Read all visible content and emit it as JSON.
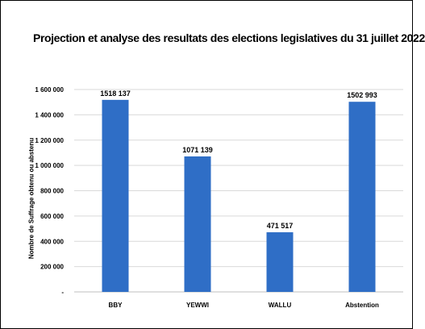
{
  "chart_data": {
    "type": "bar",
    "title": "Projection et analyse des resultats des elections legislatives du 31 juillet 2022",
    "xlabel": "",
    "ylabel": "Nombre de Suffrage obtenu ou abstenu",
    "categories": [
      "BBY",
      "YEWWI",
      "WALLU",
      "Abstention"
    ],
    "values": [
      1518137,
      1071139,
      471517,
      1502993
    ],
    "data_labels": [
      "1518 137",
      "1071 139",
      "471 517",
      "1502 993"
    ],
    "ylim": [
      0,
      1600000
    ],
    "yticks": [
      0,
      200000,
      400000,
      600000,
      800000,
      1000000,
      1200000,
      1400000,
      1600000
    ],
    "ytick_labels": [
      "-",
      "200 000",
      "400 000",
      "600 000",
      "800 000",
      "1 000 000",
      "1 200 000",
      "1 400 000",
      "1 600 000"
    ],
    "grid": true,
    "legend": "none",
    "bar_color": "#2f6ec6",
    "grid_color": "#d9d9d9"
  }
}
